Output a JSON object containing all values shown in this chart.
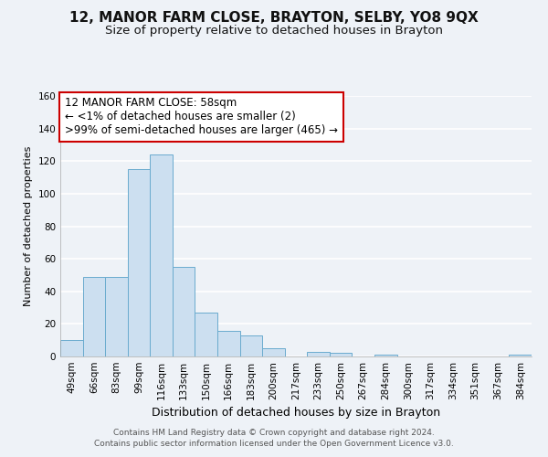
{
  "title": "12, MANOR FARM CLOSE, BRAYTON, SELBY, YO8 9QX",
  "subtitle": "Size of property relative to detached houses in Brayton",
  "xlabel": "Distribution of detached houses by size in Brayton",
  "ylabel": "Number of detached properties",
  "categories": [
    "49sqm",
    "66sqm",
    "83sqm",
    "99sqm",
    "116sqm",
    "133sqm",
    "150sqm",
    "166sqm",
    "183sqm",
    "200sqm",
    "217sqm",
    "233sqm",
    "250sqm",
    "267sqm",
    "284sqm",
    "300sqm",
    "317sqm",
    "334sqm",
    "351sqm",
    "367sqm",
    "384sqm"
  ],
  "values": [
    10,
    49,
    49,
    115,
    124,
    55,
    27,
    16,
    13,
    5,
    0,
    3,
    2,
    0,
    1,
    0,
    0,
    0,
    0,
    0,
    1
  ],
  "bar_color": "#ccdff0",
  "bar_edge_color": "#6aabce",
  "ylim": [
    0,
    160
  ],
  "yticks": [
    0,
    20,
    40,
    60,
    80,
    100,
    120,
    140,
    160
  ],
  "annotation_title": "12 MANOR FARM CLOSE: 58sqm",
  "annotation_line1": "← <1% of detached houses are smaller (2)",
  "annotation_line2": ">99% of semi-detached houses are larger (465) →",
  "annotation_box_color": "#ffffff",
  "annotation_box_edge": "#cc0000",
  "footer1": "Contains HM Land Registry data © Crown copyright and database right 2024.",
  "footer2": "Contains public sector information licensed under the Open Government Licence v3.0.",
  "background_color": "#eef2f7",
  "grid_color": "#ffffff",
  "title_fontsize": 11,
  "subtitle_fontsize": 9.5,
  "xlabel_fontsize": 9,
  "ylabel_fontsize": 8,
  "tick_fontsize": 7.5,
  "annotation_fontsize": 8.5,
  "footer_fontsize": 6.5
}
